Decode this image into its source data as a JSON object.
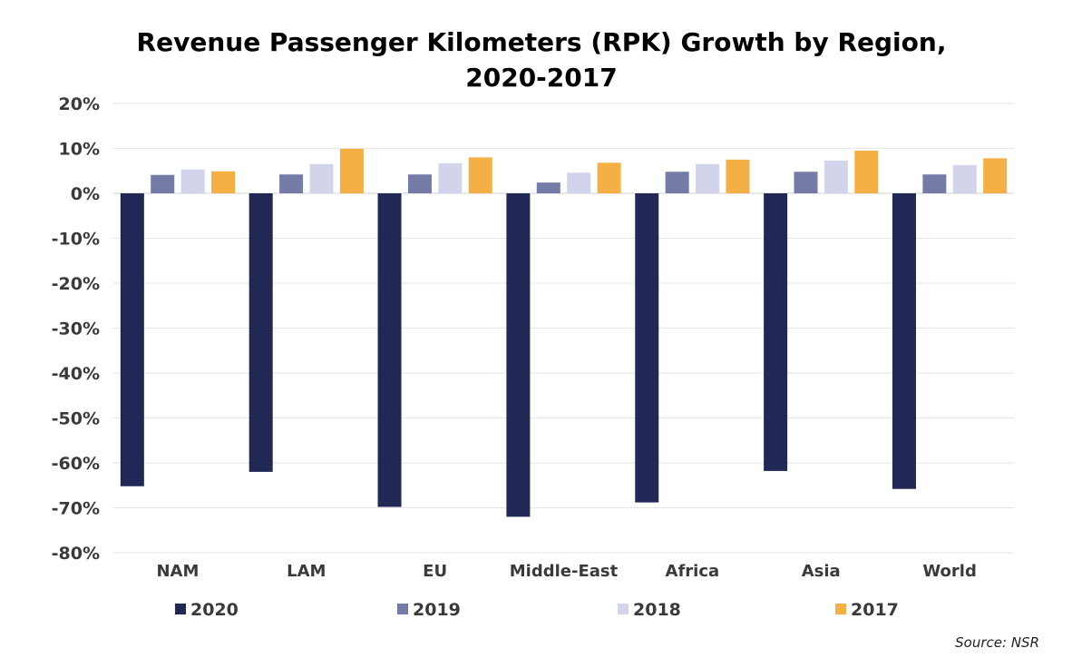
{
  "chart_data": {
    "type": "bar",
    "title": "Revenue Passenger Kilometers (RPK) Growth by Region,",
    "title_line2": "2020-2017",
    "xlabel": "",
    "ylabel": "",
    "categories": [
      "NAM",
      "LAM",
      "EU",
      "Middle-East",
      "Africa",
      "Asia",
      "World"
    ],
    "series": [
      {
        "name": "2020",
        "color": "#212856",
        "values": [
          -65.2,
          -62.0,
          -69.8,
          -72.0,
          -68.8,
          -61.8,
          -65.8
        ]
      },
      {
        "name": "2019",
        "color": "#757ba7",
        "values": [
          4.1,
          4.2,
          4.2,
          2.4,
          4.8,
          4.8,
          4.2
        ]
      },
      {
        "name": "2018",
        "color": "#d2d4ec",
        "values": [
          5.3,
          6.5,
          6.7,
          4.6,
          6.5,
          7.3,
          6.3
        ]
      },
      {
        "name": "2017",
        "color": "#f4b044",
        "values": [
          4.9,
          9.9,
          8.0,
          6.8,
          7.5,
          9.5,
          7.8
        ]
      }
    ],
    "ylim": [
      -80,
      20
    ],
    "yticks": [
      20,
      10,
      0,
      -10,
      -20,
      -30,
      -40,
      -50,
      -60,
      -70,
      -80
    ],
    "ytick_labels": [
      "20%",
      "10%",
      "0%",
      "-10%",
      "-20%",
      "-30%",
      "-40%",
      "-50%",
      "-60%",
      "-70%",
      "-80%"
    ],
    "grid": true,
    "legend_position": "bottom",
    "source": "Source: NSR"
  }
}
